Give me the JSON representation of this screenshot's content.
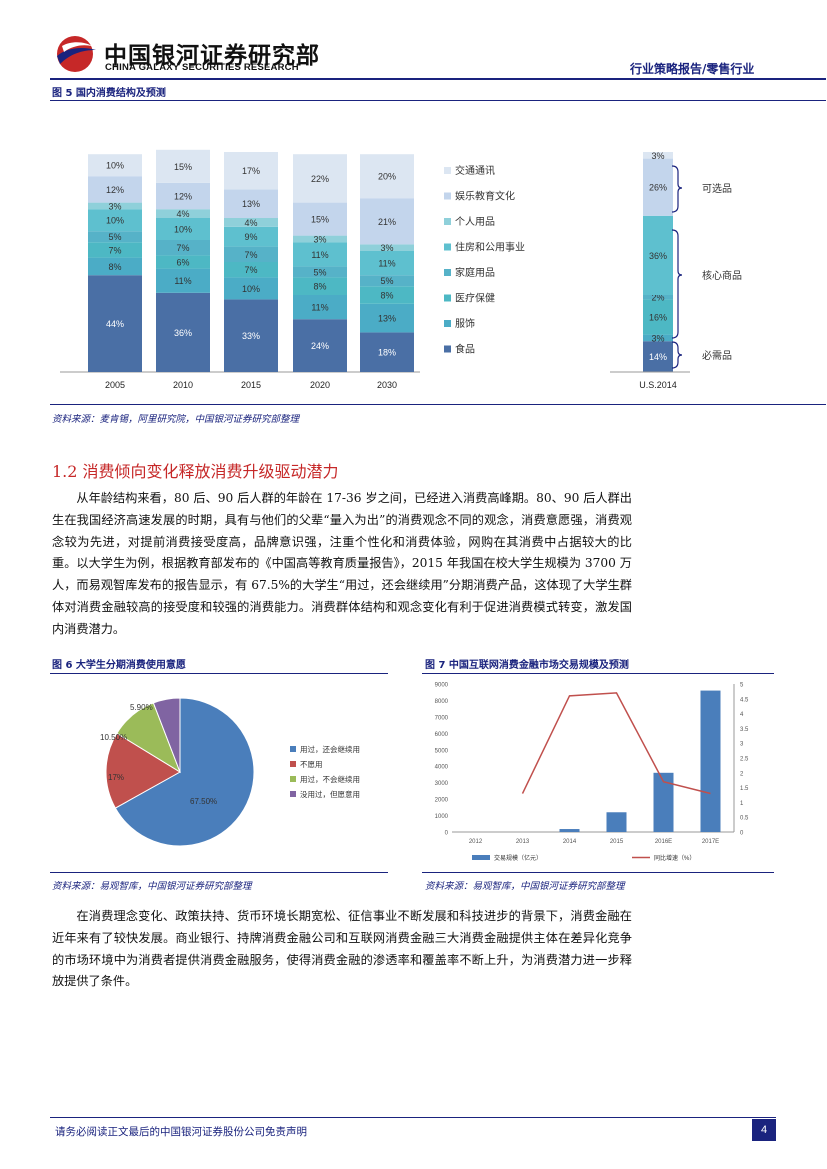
{
  "header": {
    "logo_cn": "中国银河证券研究部",
    "logo_en": "CHINA GALAXY SECURITIES RESEARCH",
    "report_type": "行业策略报告/零售行业"
  },
  "figure5": {
    "title": "图 5 国内消费结构及预测",
    "source": "资料来源：麦肯锡，阿里研究院，中国银河证券研究部整理"
  },
  "section": {
    "title": "1.2 消费倾向变化释放消费升级驱动潜力"
  },
  "paragraph1": "从年龄结构来看，80 后、90 后人群的年龄在 17-36 岁之间，已经进入消费高峰期。80、90 后人群出生在我国经济高速发展的时期，具有与他们的父辈“量入为出”的消费观念不同的观念，消费意愿强，消费观念较为先进，对提前消费接受度高，品牌意识强，注重个性化和消费体验，网购在其消费中占据较大的比重。以大学生为例，根据教育部发布的《中国高等教育质量报告》，2015 年我国在校大学生规模为 3700 万人，而易观智库发布的报告显示，有 67.5%的大学生“用过，还会继续用”分期消费产品，这体现了大学生群体对消费金融较高的接受度和较强的消费能力。消费群体结构和观念变化有利于促进消费模式转变，激发国内消费潜力。",
  "figure6": {
    "title": "图 6 大学生分期消费使用意愿",
    "source": "资料来源：易观智库，中国银河证券研究部整理"
  },
  "figure7": {
    "title": "图 7 中国互联网消费金融市场交易规模及预测",
    "source": "资料来源：易观智库，中国银河证券研究部整理"
  },
  "paragraph2": "在消费理念变化、政策扶持、货币环境长期宽松、征信事业不断发展和科技进步的背景下，消费金融在近年来有了较快发展。商业银行、持牌消费金融公司和互联网消费金融三大消费金融提供主体在差异化竞争的市场环境中为消费者提供消费金融服务，使得消费金融的渗透率和覆盖率不断上升，为消费潜力进一步释放提供了条件。",
  "footer": {
    "disclaimer": "请务必阅读正文最后的中国银河证券股份公司免责声明",
    "page": "4"
  },
  "colors": {
    "navy": "#1a237e",
    "red": "#c62828",
    "bar_food": "#4a6fa5",
    "bar_clothing": "#4bacc6",
    "bar_health": "#4db8c4",
    "bar_household": "#56b2c8",
    "bar_housing": "#5ec0cf",
    "bar_personal": "#8fd0da",
    "bar_entertainment": "#c3d5ec",
    "bar_transport": "#dce6f2"
  },
  "chart_data": [
    {
      "id": "consumption_structure",
      "type": "bar",
      "stacked": true,
      "categories": [
        "2005",
        "2010",
        "2015",
        "2020",
        "2030"
      ],
      "series": [
        {
          "name": "食品",
          "values": [
            44,
            36,
            33,
            24,
            18
          ],
          "labels": [
            "44%",
            "36%",
            "33%",
            "24%",
            "18%"
          ]
        },
        {
          "name": "服饰",
          "values": [
            8,
            11,
            10,
            11,
            13
          ],
          "labels": [
            "8%",
            "11%",
            "10%",
            "11%",
            "13%"
          ]
        },
        {
          "name": "医疗保健",
          "values": [
            7,
            6,
            7,
            8,
            8
          ],
          "labels": [
            "7%",
            "6%",
            "7%",
            "8%",
            "8%"
          ]
        },
        {
          "name": "家庭用品",
          "values": [
            5,
            7,
            7,
            5,
            5
          ],
          "labels": [
            "5%",
            "7%",
            "7%",
            "5%",
            "5%"
          ]
        },
        {
          "name": "住房和公用事业",
          "values": [
            10,
            10,
            9,
            11,
            11
          ],
          "labels": [
            "10%",
            "10%",
            "9%",
            "11%",
            "11%"
          ]
        },
        {
          "name": "个人用品",
          "values": [
            3,
            4,
            4,
            3,
            3
          ],
          "labels": [
            "3%",
            "4%",
            "4%",
            "3%",
            "3%"
          ]
        },
        {
          "name": "娱乐教育文化",
          "values": [
            12,
            12,
            13,
            15,
            21
          ],
          "labels": [
            "12%",
            "12%",
            "13%",
            "15%",
            "21%"
          ]
        },
        {
          "name": "交通通讯",
          "values": [
            10,
            15,
            17,
            22,
            20
          ],
          "labels": [
            "10%",
            "15%",
            "17%",
            "22%",
            "20%"
          ]
        }
      ],
      "ylim": [
        0,
        100
      ]
    },
    {
      "id": "us_2014",
      "type": "bar",
      "stacked": true,
      "categories": [
        "U.S.2014"
      ],
      "series": [
        {
          "name": "食品",
          "values": [
            14
          ],
          "labels": [
            "14%"
          ]
        },
        {
          "name": "服饰",
          "values": [
            3
          ],
          "labels": [
            "3%"
          ]
        },
        {
          "name": "医疗保健",
          "values": [
            16
          ],
          "labels": [
            "16%"
          ]
        },
        {
          "name": "家庭用品",
          "values": [
            2
          ],
          "labels": [
            "2%"
          ]
        },
        {
          "name": "住房和公用事业",
          "values": [
            36
          ],
          "labels": [
            "36%"
          ]
        },
        {
          "name": "娱乐教育文化",
          "values": [
            26
          ],
          "labels": [
            "26%"
          ]
        },
        {
          "name": "交通通讯",
          "values": [
            3
          ],
          "labels": [
            "3%"
          ]
        }
      ],
      "groups": [
        "可选品",
        "核心商品",
        "必需品"
      ]
    },
    {
      "id": "student_installment",
      "type": "pie",
      "slices": [
        {
          "name": "用过，还会继续用",
          "value": 67.5,
          "label": "67.50%"
        },
        {
          "name": "不愿用",
          "value": 17,
          "label": "17%"
        },
        {
          "name": "用过，不会继续用",
          "value": 10.5,
          "label": "10.50%"
        },
        {
          "name": "没用过，但愿意用",
          "value": 5.9,
          "label": "5.90%"
        }
      ]
    },
    {
      "id": "internet_consumer_finance",
      "type": "bar",
      "categories": [
        "2012",
        "2013",
        "2014",
        "2015",
        "2016E",
        "2017E"
      ],
      "series": [
        {
          "name": "交易规模（亿元）",
          "type": "bar",
          "axis": "left",
          "values": [
            0,
            0,
            180,
            1200,
            3600,
            8600
          ]
        },
        {
          "name": "同比增速（%）",
          "type": "line",
          "axis": "right",
          "values": [
            null,
            1.3,
            4.6,
            4.7,
            1.7,
            1.3
          ]
        }
      ],
      "y_left_ticks": [
        "0",
        "1000",
        "2000",
        "3000",
        "4000",
        "5000",
        "6000",
        "7000",
        "8000",
        "9000"
      ],
      "y_right_ticks": [
        "0",
        "0.5",
        "1",
        "1.5",
        "2",
        "2.5",
        "3",
        "3.5",
        "4",
        "4.5",
        "5"
      ],
      "ylim_left": [
        0,
        9000
      ],
      "ylim_right": [
        0,
        5
      ]
    }
  ]
}
